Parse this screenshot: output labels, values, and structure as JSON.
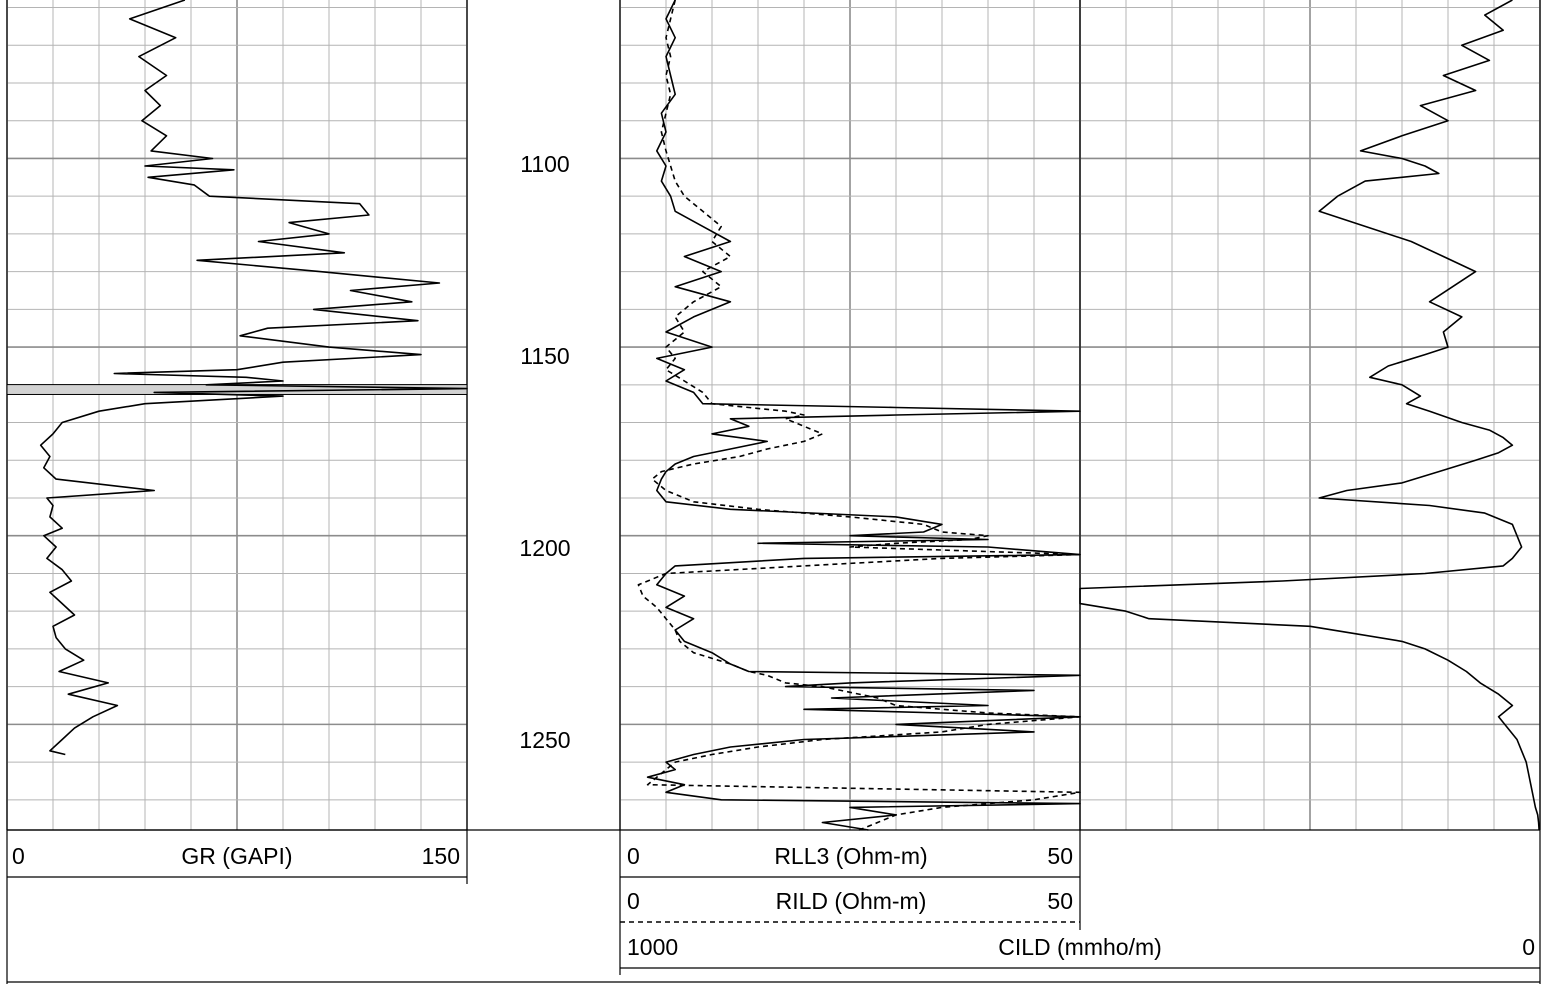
{
  "chart_data": {
    "type": "line",
    "title": "",
    "depth_axis": {
      "ylim": [
        1058,
        1278
      ],
      "ticks": [
        1100,
        1150,
        1200,
        1250
      ],
      "tick_labels": [
        "1100",
        "1150",
        "1200",
        "1250"
      ],
      "grid": true,
      "minor_step": 10
    },
    "tracks": [
      {
        "name": "gr-track",
        "xlim": [
          0,
          150
        ],
        "scale": "linear",
        "curves": [
          {
            "name": "GR (GAPI)",
            "style": "solid",
            "min_label": "0",
            "max_label": "150",
            "depth": [
              1058,
              1063,
              1068,
              1073,
              1078,
              1082,
              1086,
              1090,
              1094,
              1098,
              1100,
              1102,
              1103,
              1105,
              1107,
              1110,
              1112,
              1115,
              1117,
              1120,
              1122,
              1125,
              1127,
              1130,
              1133,
              1135,
              1138,
              1140,
              1143,
              1145,
              1147,
              1150,
              1152,
              1154,
              1156,
              1157,
              1158,
              1159,
              1160,
              1161,
              1162,
              1163,
              1165,
              1167,
              1170,
              1173,
              1176,
              1179,
              1182,
              1185,
              1188,
              1190,
              1192,
              1195,
              1198,
              1200,
              1203,
              1206,
              1209,
              1212,
              1215,
              1218,
              1221,
              1224,
              1227,
              1230,
              1233,
              1236,
              1239,
              1242,
              1245,
              1248,
              1251,
              1254,
              1257,
              1258
            ],
            "values": [
              58,
              40,
              55,
              43,
              52,
              45,
              50,
              44,
              52,
              47,
              67,
              45,
              74,
              46,
              61,
              66,
              115,
              118,
              92,
              105,
              82,
              110,
              62,
              102,
              141,
              112,
              132,
              100,
              134,
              85,
              76,
              105,
              135,
              90,
              75,
              35,
              78,
              90,
              65,
              150,
              48,
              90,
              45,
              30,
              18,
              15,
              11,
              14,
              12,
              16,
              48,
              13,
              15,
              14,
              18,
              12,
              16,
              13,
              18,
              21,
              14,
              18,
              22,
              15,
              16,
              19,
              25,
              17,
              33,
              20,
              36,
              28,
              22,
              18,
              14,
              19
            ]
          }
        ]
      },
      {
        "name": "resistivity-track",
        "xlim": [
          0,
          50
        ],
        "scale": "linear",
        "curves": [
          {
            "name": "RLL3 (Ohm-m)",
            "style": "solid",
            "min_label": "0",
            "max_label": "50",
            "depth": [
              1058,
              1063,
              1068,
              1073,
              1078,
              1083,
              1088,
              1093,
              1098,
              1102,
              1106,
              1110,
              1114,
              1118,
              1122,
              1126,
              1130,
              1134,
              1138,
              1142,
              1146,
              1150,
              1153,
              1156,
              1159,
              1162,
              1165,
              1166,
              1167,
              1168,
              1169,
              1171,
              1173,
              1175,
              1177,
              1179,
              1181,
              1183,
              1185,
              1188,
              1191,
              1193,
              1195,
              1197,
              1199,
              1200,
              1201,
              1202,
              1203,
              1205,
              1206,
              1208,
              1210,
              1213,
              1216,
              1219,
              1222,
              1225,
              1228,
              1231,
              1234,
              1236,
              1237,
              1239,
              1240,
              1241,
              1243,
              1245,
              1246,
              1247,
              1248,
              1250,
              1252,
              1254,
              1256,
              1258,
              1260,
              1262,
              1264,
              1266,
              1268,
              1270,
              1271,
              1272,
              1274,
              1276,
              1278
            ],
            "values": [
              6,
              5,
              6,
              5,
              5.5,
              6,
              4.5,
              5,
              4,
              5,
              4.5,
              5.5,
              6,
              9,
              12,
              7,
              11,
              6,
              12,
              8,
              5,
              10,
              4,
              7,
              5,
              8,
              9,
              30,
              50,
              30,
              12,
              14,
              10,
              16,
              12,
              8,
              6,
              5,
              4.5,
              4,
              5,
              12,
              30,
              35,
              33,
              25,
              40,
              15,
              40,
              50,
              20,
              6,
              5,
              4,
              7,
              5,
              8,
              6,
              7,
              10,
              12,
              14,
              50,
              25,
              18,
              45,
              23,
              40,
              20,
              35,
              50,
              30,
              45,
              20,
              12,
              8,
              5,
              6,
              3,
              7,
              5,
              11,
              50,
              25,
              30,
              22,
              27
            ]
          },
          {
            "name": "RILD (Ohm-m)",
            "style": "dashed",
            "min_label": "0",
            "max_label": "50",
            "depth": [
              1058,
              1063,
              1068,
              1073,
              1078,
              1083,
              1088,
              1093,
              1098,
              1102,
              1106,
              1110,
              1114,
              1118,
              1122,
              1126,
              1130,
              1134,
              1138,
              1142,
              1146,
              1150,
              1153,
              1156,
              1159,
              1162,
              1165,
              1166,
              1167,
              1168,
              1169,
              1171,
              1173,
              1175,
              1177,
              1179,
              1181,
              1183,
              1185,
              1188,
              1191,
              1193,
              1195,
              1197,
              1199,
              1200,
              1201,
              1202,
              1203,
              1205,
              1206,
              1208,
              1210,
              1213,
              1216,
              1219,
              1222,
              1225,
              1228,
              1231,
              1234,
              1236,
              1237,
              1239,
              1240,
              1241,
              1243,
              1245,
              1246,
              1247,
              1248,
              1250,
              1252,
              1254,
              1256,
              1258,
              1260,
              1262,
              1264,
              1266,
              1268,
              1270,
              1271,
              1272,
              1274,
              1276,
              1278
            ],
            "values": [
              6,
              5.5,
              5,
              5.5,
              5,
              5.5,
              5,
              4.5,
              5,
              5.5,
              6,
              7,
              9,
              11,
              10,
              12,
              9,
              11,
              8,
              6,
              7,
              5,
              6,
              5,
              7,
              9,
              10,
              14,
              18,
              20,
              18,
              20,
              22,
              20,
              16,
              13,
              8,
              4.5,
              3.5,
              5,
              8,
              15,
              25,
              33,
              35,
              40,
              38,
              30,
              25,
              50,
              35,
              20,
              5,
              2,
              2.5,
              4,
              5,
              6,
              6.5,
              8,
              12,
              14,
              16,
              18,
              22,
              24,
              28,
              30,
              35,
              40,
              50,
              40,
              35,
              22,
              15,
              10,
              6,
              5,
              4,
              3,
              50,
              45,
              40,
              35,
              30,
              28,
              26
            ]
          }
        ]
      },
      {
        "name": "conductivity-track",
        "xlim": [
          1000,
          0
        ],
        "scale": "linear",
        "curves": [
          {
            "name": "CILD (mmho/m)",
            "style": "solid",
            "min_label": "1000",
            "max_label": "0",
            "depth": [
              1058,
              1062,
              1066,
              1070,
              1074,
              1078,
              1082,
              1086,
              1090,
              1094,
              1098,
              1100,
              1102,
              1104,
              1106,
              1110,
              1114,
              1118,
              1122,
              1126,
              1130,
              1134,
              1138,
              1142,
              1146,
              1150,
              1152,
              1155,
              1158,
              1160,
              1163,
              1165,
              1167,
              1170,
              1172,
              1174,
              1176,
              1178,
              1180,
              1183,
              1186,
              1188,
              1190,
              1192,
              1194,
              1197,
              1200,
              1203,
              1206,
              1208,
              1210,
              1212,
              1214,
              1216,
              1218,
              1220,
              1222,
              1224,
              1226,
              1228,
              1230,
              1233,
              1236,
              1239,
              1242,
              1245,
              1248,
              1251,
              1254,
              1257,
              1260,
              1263,
              1266,
              1269,
              1272,
              1274,
              1276,
              1278
            ],
            "values": [
              60,
              120,
              80,
              170,
              110,
              210,
              140,
              260,
              200,
              300,
              390,
              300,
              250,
              220,
              380,
              440,
              480,
              380,
              280,
              210,
              140,
              190,
              240,
              170,
              210,
              200,
              250,
              330,
              370,
              300,
              260,
              290,
              240,
              170,
              110,
              80,
              60,
              90,
              140,
              220,
              300,
              420,
              480,
              240,
              120,
              60,
              50,
              40,
              60,
              80,
              250,
              560,
              1000,
              1000,
              1000,
              900,
              850,
              500,
              400,
              300,
              250,
              200,
              160,
              130,
              90,
              60,
              90,
              70,
              50,
              40,
              30,
              25,
              20,
              15,
              10,
              5,
              3,
              2
            ]
          }
        ]
      }
    ],
    "shaded_interval": {
      "track": "gr-track",
      "depth_top": 1161,
      "depth_bottom": 1161.5
    }
  }
}
